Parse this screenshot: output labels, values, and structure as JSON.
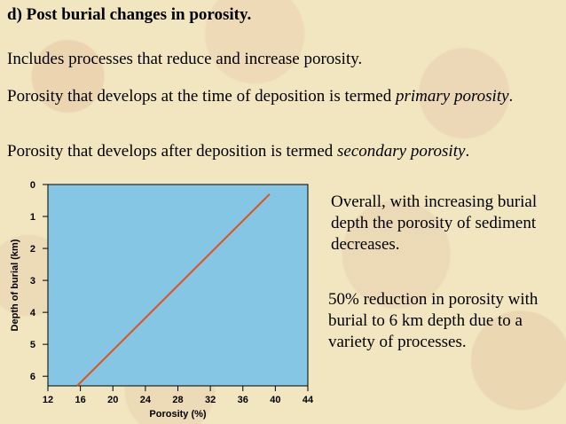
{
  "heading": "d) Post burial changes in porosity.",
  "paragraphs": {
    "p1": "Includes processes that reduce and increase porosity.",
    "p2_text": "Porosity that develops at the time of deposition is termed ",
    "p2_term": "primary porosity",
    "p2_end": ".",
    "p3_text": "Porosity that develops after deposition is termed ",
    "p3_term": "secondary porosity",
    "p3_end": "."
  },
  "notes": {
    "note1": "Overall, with increasing burial depth the porosity of sediment decreases.",
    "note2": "50% reduction in porosity with burial to 6 km depth due to a variety of processes."
  },
  "chart_data": {
    "type": "line",
    "title": "",
    "xlabel": "Porosity (%)",
    "ylabel": "Depth of burial (km)",
    "xlim": [
      12,
      44
    ],
    "ylim": [
      0,
      6.3
    ],
    "y_inverted": true,
    "x_ticks": [
      12,
      16,
      20,
      24,
      28,
      32,
      36,
      40,
      44
    ],
    "y_ticks": [
      0,
      1,
      2,
      3,
      4,
      5,
      6
    ],
    "grid": false,
    "colors": {
      "plot_bg": "#84c6e4",
      "line": "#e0521c",
      "axes": "#000000"
    },
    "series": [
      {
        "x": [
          15.6,
          39.3
        ],
        "y": [
          6.3,
          0.3
        ]
      }
    ]
  }
}
